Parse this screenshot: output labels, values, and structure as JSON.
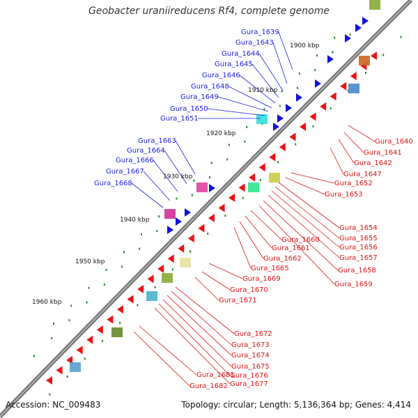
{
  "title": "Geobacter uraniireducens Rf4, complete genome",
  "footer": {
    "accession": "Accession: NC_009483",
    "summary": "Topology: circular; Length: 5,136,364 bp; Genes: 4,414"
  },
  "colors": {
    "forward_gene": "#1111dd",
    "reverse_gene": "#ee1111",
    "backbone": "#777777",
    "blue_label": "#1a1ae6",
    "red_label": "#e01010",
    "dots": "#228822"
  },
  "kbp_markers": [
    "1900 kbp",
    "1910 kbp",
    "1920 kbp",
    "1930 kbp",
    "1940 kbp",
    "1950 kbp",
    "1960 kbp"
  ],
  "blue_labels": [
    "Gura_1639",
    "Gura_1643",
    "Gura_1644",
    "Gura_1645",
    "Gura_1646",
    "Gura_1648",
    "Gura_1649",
    "Gura_1650",
    "Gura_1651",
    "Gura_1663",
    "Gura_1664",
    "Gura_1666",
    "Gura_1667",
    "Gura_1668"
  ],
  "red_labels": [
    "Gura_1640",
    "Gura_1641",
    "Gura_1642",
    "Gura_1647",
    "Gura_1652",
    "Gura_1653",
    "Gura_1654",
    "Gura_1655",
    "Gura_1656",
    "Gura_1657",
    "Gura_1658",
    "Gura_1659",
    "Gura_1660",
    "Gura_1661",
    "Gura_1662",
    "Gura_1665",
    "Gura_1669",
    "Gura_1670",
    "Gura_1671",
    "Gura_1672",
    "Gura_1673",
    "Gura_1674",
    "Gura_1675",
    "Gura_1676",
    "Gura_1677",
    "Gura_1681",
    "Gura_1682"
  ]
}
